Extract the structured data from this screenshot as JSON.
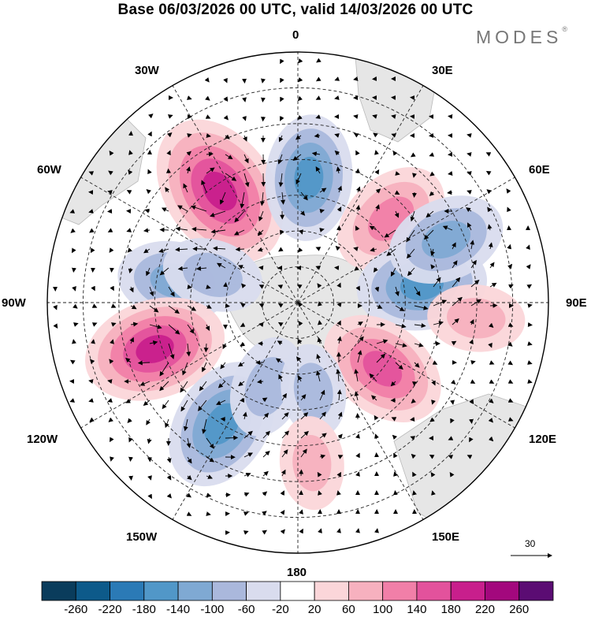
{
  "title": "Base 06/03/2026 00 UTC, valid 14/03/2026 00 UTC",
  "brand": {
    "name": "MODES",
    "mark": "®"
  },
  "longitude_labels": {
    "top": "0",
    "bottom": "180",
    "left": "90W",
    "right": "90E",
    "upper_left_30": "30W",
    "upper_left_60": "60W",
    "upper_right_30": "30E",
    "upper_right_60": "60E",
    "lower_left_120": "120W",
    "lower_left_150": "150W",
    "lower_right_120": "120E",
    "lower_right_150": "150E"
  },
  "wind_reference": {
    "value": "30"
  },
  "colorbar": {
    "ticks": [
      "-260",
      "-220",
      "-180",
      "-140",
      "-100",
      "-60",
      "-20",
      "20",
      "60",
      "100",
      "140",
      "180",
      "220",
      "260"
    ],
    "colors": [
      "#0a3c5c",
      "#0d5a8a",
      "#2b7ab6",
      "#5197c8",
      "#7fa9d3",
      "#aab8dc",
      "#d9dcee",
      "#ffffff",
      "#fbd6d9",
      "#f7b1bf",
      "#f17fa8",
      "#e3529c",
      "#c81f8c",
      "#a3087d",
      "#5b0c73"
    ]
  },
  "map": {
    "projection": "south-polar-stereographic",
    "field": "geopotential-height-anomaly",
    "vectors": "wind",
    "anomalies": [
      {
        "lon": -35,
        "lat": -52,
        "value": 215,
        "sign": "positive"
      },
      {
        "lon": 5,
        "lat": -55,
        "value": -140,
        "sign": "negative"
      },
      {
        "lon": 48,
        "lat": -55,
        "value": 130,
        "sign": "positive"
      },
      {
        "lon": -80,
        "lat": -55,
        "value": -110,
        "sign": "negative"
      },
      {
        "lon": -72,
        "lat": -65,
        "value": -80,
        "sign": "negative"
      },
      {
        "lon": 82,
        "lat": -55,
        "value": -150,
        "sign": "negative"
      },
      {
        "lon": 67,
        "lat": -45,
        "value": -120,
        "sign": "negative"
      },
      {
        "lon": 95,
        "lat": -40,
        "value": 70,
        "sign": "positive"
      },
      {
        "lon": -108,
        "lat": -48,
        "value": 180,
        "sign": "positive"
      },
      {
        "lon": 128,
        "lat": -60,
        "value": 150,
        "sign": "positive"
      },
      {
        "lon": -148,
        "lat": -50,
        "value": -160,
        "sign": "negative"
      },
      {
        "lon": -160,
        "lat": -65,
        "value": -80,
        "sign": "negative"
      },
      {
        "lon": 170,
        "lat": -65,
        "value": -60,
        "sign": "negative"
      },
      {
        "lon": 175,
        "lat": -45,
        "value": 60,
        "sign": "positive"
      }
    ]
  }
}
